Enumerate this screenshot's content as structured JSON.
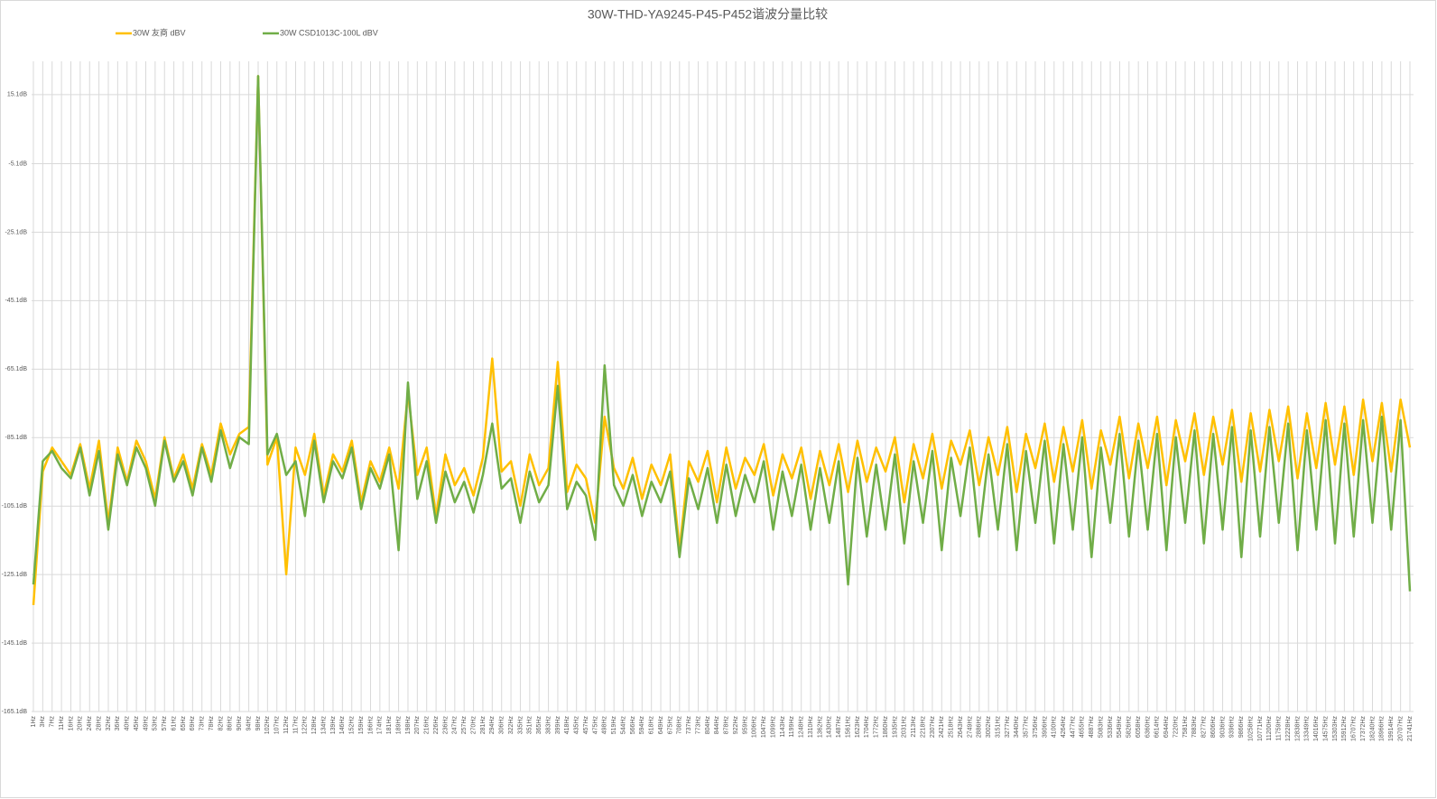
{
  "chart_data": {
    "type": "line",
    "title": "30W-THD-YA9245-P45-P452谐波分量比较",
    "categories": [
      "1Hz",
      "3Hz",
      "7Hz",
      "11Hz",
      "16Hz",
      "20Hz",
      "24Hz",
      "28Hz",
      "32Hz",
      "36Hz",
      "40Hz",
      "45Hz",
      "49Hz",
      "53Hz",
      "57Hz",
      "61Hz",
      "65Hz",
      "69Hz",
      "73Hz",
      "78Hz",
      "82Hz",
      "86Hz",
      "90Hz",
      "94Hz",
      "98Hz",
      "102Hz",
      "107Hz",
      "112Hz",
      "117Hz",
      "122Hz",
      "128Hz",
      "134Hz",
      "139Hz",
      "146Hz",
      "152Hz",
      "159Hz",
      "166Hz",
      "174Hz",
      "181Hz",
      "189Hz",
      "198Hz",
      "207Hz",
      "216Hz",
      "226Hz",
      "236Hz",
      "247Hz",
      "257Hz",
      "270Hz",
      "281Hz",
      "294Hz",
      "306Hz",
      "322Hz",
      "335Hz",
      "351Hz",
      "365Hz",
      "383Hz",
      "399Hz",
      "418Hz",
      "435Hz",
      "457Hz",
      "475Hz",
      "498Hz",
      "519Hz",
      "544Hz",
      "566Hz",
      "594Hz",
      "618Hz",
      "649Hz",
      "675Hz",
      "708Hz",
      "737Hz",
      "773Hz",
      "804Hz",
      "844Hz",
      "878Hz",
      "922Hz",
      "959Hz",
      "1006Hz",
      "1047Hz",
      "1099Hz",
      "1143Hz",
      "1199Hz",
      "1248Hz",
      "1310Hz",
      "1362Hz",
      "1430Hz",
      "1487Hz",
      "1561Hz",
      "1623Hz",
      "1704Hz",
      "1772Hz",
      "1860Hz",
      "1935Hz",
      "2031Hz",
      "2113Hz",
      "2218Hz",
      "2307Hz",
      "2421Hz",
      "2518Hz",
      "2643Hz",
      "2749Hz",
      "2886Hz",
      "3002Hz",
      "3151Hz",
      "3277Hz",
      "3440Hz",
      "3577Hz",
      "3756Hz",
      "3906Hz",
      "4100Hz",
      "4264Hz",
      "4477Hz",
      "4655Hz",
      "4887Hz",
      "5083Hz",
      "5336Hz",
      "5549Hz",
      "5826Hz",
      "6058Hz",
      "6360Hz",
      "6614Hz",
      "6944Hz",
      "7220Hz",
      "7581Hz",
      "7883Hz",
      "8277Hz",
      "8606Hz",
      "9036Hz",
      "9396Hz",
      "9866Hz",
      "10258Hz",
      "10771Hz",
      "11200Hz",
      "11759Hz",
      "12228Hz",
      "12838Hz",
      "13349Hz",
      "14016Hz",
      "14575Hz",
      "15303Hz",
      "15912Hz",
      "16707Hz",
      "17372Hz",
      "18240Hz",
      "18966Hz",
      "19914Hz",
      "20707Hz",
      "21741Hz"
    ],
    "series": [
      {
        "name": "30W 友商 dBV",
        "color": "#ffc000",
        "values": [
          -134,
          -95,
          -88,
          -92,
          -96,
          -87,
          -100,
          -86,
          -110,
          -88,
          -98,
          -86,
          -92,
          -103,
          -85,
          -97,
          -90,
          -100,
          -87,
          -96,
          -81,
          -90,
          -84,
          -82,
          20.5,
          -93,
          -85,
          -125,
          -88,
          -96,
          -84,
          -102,
          -90,
          -95,
          -86,
          -104,
          -92,
          -98,
          -88,
          -100,
          -72,
          -96,
          -88,
          -108,
          -90,
          -99,
          -94,
          -102,
          -91,
          -62,
          -95,
          -92,
          -105,
          -90,
          -99,
          -94,
          -63,
          -101,
          -93,
          -97,
          -110,
          -79,
          -94,
          -100,
          -91,
          -103,
          -93,
          -99,
          -90,
          -118,
          -92,
          -98,
          -89,
          -104,
          -88,
          -100,
          -91,
          -96,
          -87,
          -102,
          -90,
          -97,
          -88,
          -103,
          -89,
          -99,
          -87,
          -101,
          -86,
          -98,
          -88,
          -95,
          -85,
          -104,
          -87,
          -97,
          -84,
          -100,
          -86,
          -93,
          -83,
          -99,
          -85,
          -96,
          -82,
          -101,
          -84,
          -94,
          -81,
          -98,
          -82,
          -95,
          -80,
          -100,
          -83,
          -93,
          -79,
          -97,
          -81,
          -94,
          -79,
          -99,
          -80,
          -92,
          -78,
          -96,
          -79,
          -93,
          -77,
          -98,
          -78,
          -95,
          -77,
          -92,
          -76,
          -97,
          -78,
          -94,
          -75,
          -93,
          -76,
          -96,
          -74,
          -92,
          -75,
          -95,
          -74,
          -88
        ]
      },
      {
        "name": "30W CSD1013C-100L dBV",
        "color": "#70ad47",
        "values": [
          -128,
          -92,
          -89,
          -94,
          -97,
          -88,
          -102,
          -89,
          -112,
          -90,
          -99,
          -88,
          -94,
          -105,
          -86,
          -98,
          -92,
          -102,
          -88,
          -98,
          -83,
          -94,
          -85,
          -87,
          20.5,
          -90,
          -84,
          -96,
          -92,
          -108,
          -86,
          -104,
          -92,
          -97,
          -88,
          -106,
          -94,
          -100,
          -90,
          -118,
          -69,
          -103,
          -92,
          -110,
          -95,
          -104,
          -98,
          -107,
          -96,
          -81,
          -100,
          -97,
          -110,
          -95,
          -104,
          -99,
          -70,
          -106,
          -98,
          -102,
          -115,
          -64,
          -99,
          -105,
          -96,
          -108,
          -98,
          -104,
          -95,
          -120,
          -97,
          -106,
          -94,
          -110,
          -93,
          -108,
          -96,
          -104,
          -92,
          -112,
          -95,
          -108,
          -93,
          -112,
          -94,
          -110,
          -92,
          -128,
          -91,
          -114,
          -93,
          -112,
          -90,
          -116,
          -92,
          -110,
          -89,
          -118,
          -91,
          -108,
          -88,
          -114,
          -90,
          -112,
          -87,
          -118,
          -89,
          -110,
          -86,
          -116,
          -87,
          -112,
          -85,
          -120,
          -88,
          -110,
          -84,
          -114,
          -86,
          -112,
          -84,
          -118,
          -85,
          -110,
          -83,
          -116,
          -84,
          -112,
          -82,
          -120,
          -83,
          -114,
          -82,
          -110,
          -81,
          -118,
          -83,
          -112,
          -80,
          -116,
          -81,
          -114,
          -80,
          -110,
          -79,
          -112,
          -80,
          -130
        ]
      }
    ],
    "ylim": [
      -165.1,
      24.8
    ],
    "yticks": [
      {
        "value": 15.1,
        "label": "15.1dB"
      },
      {
        "value": -5.1,
        "label": "-5.1dB"
      },
      {
        "value": -25.1,
        "label": "-25.1dB"
      },
      {
        "value": -45.1,
        "label": "-45.1dB"
      },
      {
        "value": -65.1,
        "label": "-65.1dB"
      },
      {
        "value": -85.1,
        "label": "-85.1dB"
      },
      {
        "value": -105.1,
        "label": "-105.1dB"
      },
      {
        "value": -125.1,
        "label": "-125.1dB"
      },
      {
        "value": -145.1,
        "label": "-145.1dB"
      },
      {
        "value": -165.1,
        "label": "-165.1dB"
      }
    ],
    "grid": true
  }
}
